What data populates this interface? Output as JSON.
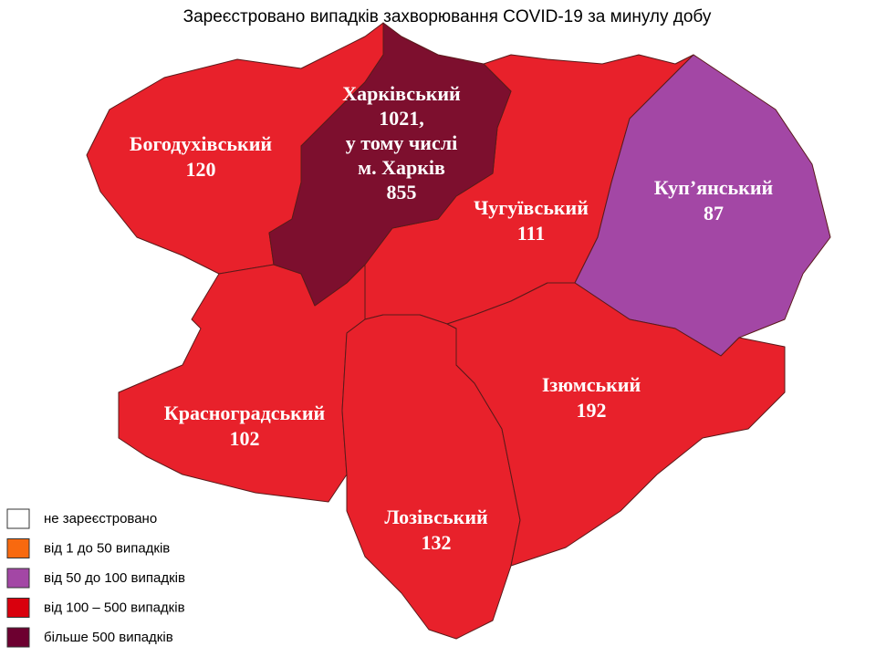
{
  "title": "Зареєстровано випадків захворювання COVID-19 за минулу добу",
  "regions": [
    {
      "lines": [
        "Богодухівський",
        "120"
      ],
      "color": "#e8212b"
    },
    {
      "lines": [
        "Чугуївський",
        "111"
      ],
      "color": "#e8212b"
    },
    {
      "lines": [
        "Куп’янський",
        "87"
      ],
      "color": "#a347a5"
    },
    {
      "lines": [
        "Красноградський",
        "102"
      ],
      "color": "#e8212b"
    },
    {
      "lines": [
        "Лозівський",
        "132"
      ],
      "color": "#e8212b"
    },
    {
      "lines": [
        "Ізюмський",
        "192"
      ],
      "color": "#e8212b"
    },
    {
      "lines": [
        "Харківський",
        "1021,",
        "у тому числі",
        "м. Харків",
        "855"
      ],
      "color": "#7d0f2e"
    }
  ],
  "legend": [
    {
      "label": "не зареєстровано",
      "color": "#ffffff"
    },
    {
      "label": "від 1 до 50  випадків",
      "color": "#f8690f"
    },
    {
      "label": "від 50 до 100  випадків",
      "color": "#a347a5"
    },
    {
      "label": "від 100 – 500  випадків",
      "color": "#d9000d"
    },
    {
      "label": "більше 500  випадків",
      "color": "#6d0030"
    }
  ]
}
